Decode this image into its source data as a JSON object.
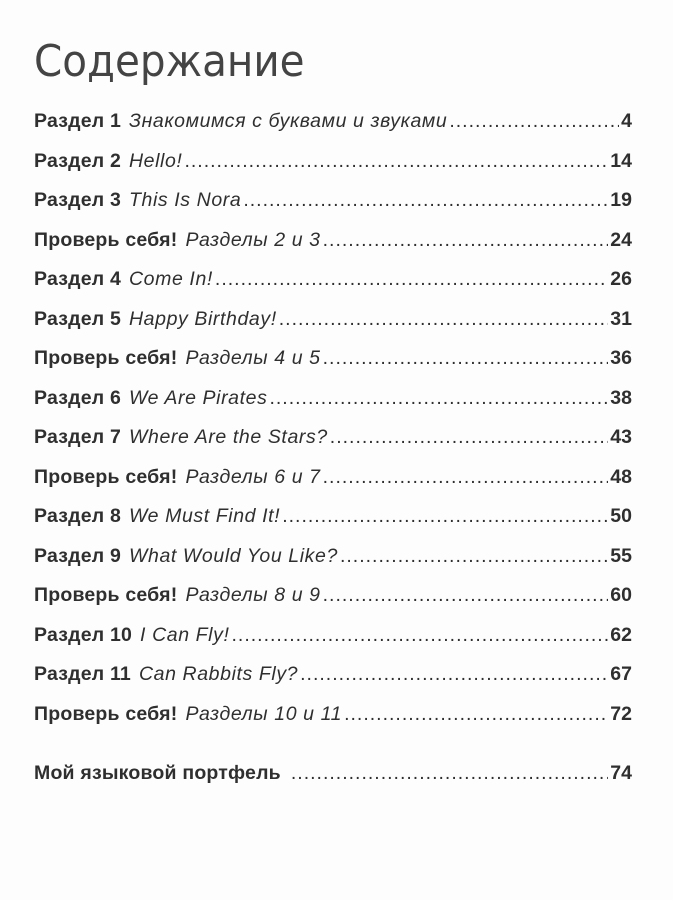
{
  "title": "Содержание",
  "entries": [
    {
      "label": "Раздел 1",
      "subtitle": "Знакомимся с буквами и звуками",
      "page": "4"
    },
    {
      "label": "Раздел 2",
      "subtitle": "Hello!",
      "page": "14"
    },
    {
      "label": "Раздел 3",
      "subtitle": "This Is Nora",
      "page": "19"
    },
    {
      "label": "Проверь себя!",
      "subtitle": "Разделы 2 и 3",
      "page": "24"
    },
    {
      "label": "Раздел 4",
      "subtitle": "Come In!",
      "page": "26"
    },
    {
      "label": "Раздел 5",
      "subtitle": "Happy Birthday!",
      "page": "31"
    },
    {
      "label": "Проверь себя!",
      "subtitle": "Разделы 4 и 5",
      "page": "36"
    },
    {
      "label": "Раздел 6",
      "subtitle": "We Are Pirates",
      "page": "38"
    },
    {
      "label": "Раздел 7",
      "subtitle": "Where Are the Stars?",
      "page": "43"
    },
    {
      "label": "Проверь себя!",
      "subtitle": "Разделы 6 и 7",
      "page": "48"
    },
    {
      "label": "Раздел 8",
      "subtitle": "We Must Find It!",
      "page": "50"
    },
    {
      "label": "Раздел 9",
      "subtitle": "What Would You Like?",
      "page": "55"
    },
    {
      "label": "Проверь себя!",
      "subtitle": "Разделы 8 и 9",
      "page": "60"
    },
    {
      "label": "Раздел 10",
      "subtitle": "I Can Fly!",
      "page": "62"
    },
    {
      "label": "Раздел 11",
      "subtitle": "Can Rabbits Fly?",
      "page": "67"
    },
    {
      "label": "Проверь себя!",
      "subtitle": "Разделы 10 и 11",
      "page": "72"
    }
  ],
  "portfolio": {
    "label": "Мой языковой портфель",
    "page": "74"
  }
}
